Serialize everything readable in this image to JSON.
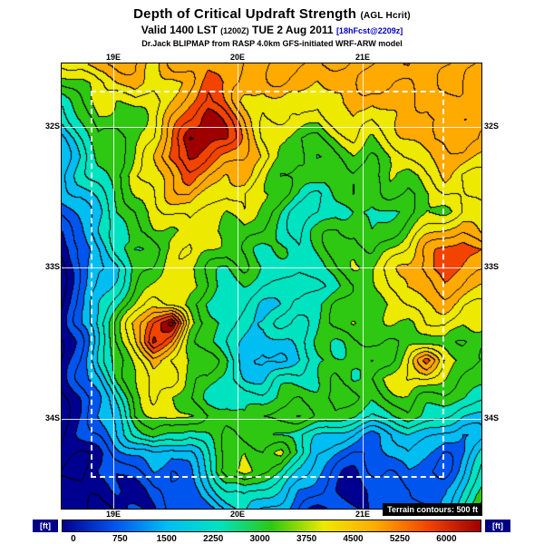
{
  "header": {
    "title": "Depth of Critical Updraft Strength",
    "title_suffix": "(AGL Hcrit)",
    "valid_prefix": "Valid 1400 LST",
    "valid_zulu": "(1200Z)",
    "valid_date": "TUE 2 Aug 2011",
    "forecast_tag": "[18hFcst@2209z]",
    "model_line": "Dr.Jack BLIPMAP from RASP 4.0km GFS-initiated WRF-ARW model"
  },
  "map": {
    "lat_labels": [
      "32S",
      "33S",
      "34S"
    ],
    "lon_labels": [
      "19E",
      "20E",
      "21E"
    ],
    "terrain_note": "Terrain contours: 500 ft",
    "grid_line_color": "#ffffff",
    "contour_color": "#000000",
    "band_colors": [
      "#000090",
      "#0055ee",
      "#00bdf2",
      "#00e3c0",
      "#2ec813",
      "#ede900",
      "#ffaa00",
      "#f24400",
      "#9e0000"
    ],
    "band_edges_ft": [
      0,
      750,
      1500,
      2250,
      3000,
      3750,
      4500,
      5250,
      6000,
      6750
    ],
    "field": [
      [
        5.5,
        5.5,
        6.5,
        6.5,
        6.5,
        6.0,
        6.5,
        6.5,
        7.0,
        6.5,
        6.5,
        6.5,
        6.5,
        6.5,
        6.5,
        6.5,
        6.5,
        6.5,
        6.5,
        7.0,
        6.5,
        6.5,
        6.5,
        6.5
      ],
      [
        4.5,
        5.0,
        5.5,
        6.0,
        6.5,
        5.5,
        5.5,
        6.5,
        7.5,
        7.0,
        6.5,
        6.0,
        6.5,
        6.5,
        6.0,
        6.5,
        6.5,
        6.5,
        6.5,
        6.5,
        7.0,
        6.5,
        6.5,
        6.5
      ],
      [
        3.5,
        4.5,
        5.5,
        5.0,
        5.5,
        5.0,
        6.0,
        7.0,
        7.5,
        7.0,
        6.0,
        5.5,
        6.0,
        6.0,
        5.5,
        6.0,
        6.5,
        6.0,
        6.5,
        6.5,
        6.5,
        7.0,
        6.5,
        6.5
      ],
      [
        3.0,
        4.0,
        5.0,
        4.5,
        4.5,
        5.5,
        6.5,
        7.5,
        8.5,
        7.5,
        6.5,
        5.5,
        5.5,
        5.5,
        5.0,
        5.5,
        6.0,
        5.5,
        6.0,
        6.5,
        6.0,
        6.5,
        6.5,
        6.5
      ],
      [
        2.5,
        3.5,
        4.5,
        4.0,
        4.5,
        5.5,
        7.0,
        8.5,
        8.5,
        8.0,
        6.5,
        5.5,
        5.0,
        4.5,
        4.5,
        5.0,
        5.5,
        5.0,
        5.5,
        6.0,
        6.5,
        6.5,
        7.0,
        6.5
      ],
      [
        2.5,
        3.0,
        4.0,
        4.5,
        5.0,
        6.0,
        7.5,
        8.0,
        7.5,
        7.0,
        6.5,
        6.0,
        5.0,
        4.5,
        4.0,
        4.5,
        5.0,
        4.5,
        5.0,
        5.5,
        6.0,
        6.5,
        6.5,
        6.0
      ],
      [
        2.5,
        3.0,
        3.5,
        4.5,
        5.5,
        6.0,
        6.5,
        7.0,
        6.5,
        6.0,
        6.5,
        5.5,
        4.5,
        4.0,
        4.5,
        4.0,
        4.5,
        4.5,
        5.0,
        4.5,
        5.5,
        6.0,
        5.5,
        5.5
      ],
      [
        2.0,
        2.5,
        3.5,
        4.0,
        5.0,
        5.5,
        6.0,
        6.5,
        6.0,
        5.5,
        5.5,
        5.0,
        4.5,
        4.0,
        3.5,
        4.0,
        4.5,
        4.0,
        4.5,
        4.5,
        5.0,
        5.5,
        5.5,
        5.0
      ],
      [
        1.5,
        2.5,
        3.0,
        4.0,
        4.5,
        5.0,
        5.5,
        6.0,
        5.5,
        5.0,
        5.5,
        4.5,
        4.0,
        3.5,
        3.5,
        4.0,
        4.0,
        3.5,
        4.0,
        4.5,
        5.0,
        5.0,
        5.5,
        5.5
      ],
      [
        1.0,
        2.0,
        3.0,
        3.5,
        4.5,
        5.0,
        5.0,
        5.5,
        5.0,
        4.5,
        5.0,
        4.5,
        4.0,
        3.5,
        4.0,
        4.5,
        4.5,
        4.0,
        4.5,
        5.0,
        5.5,
        6.0,
        6.5,
        6.0
      ],
      [
        0.5,
        1.5,
        2.5,
        3.5,
        4.0,
        4.5,
        5.0,
        5.5,
        5.0,
        4.5,
        4.5,
        4.0,
        4.0,
        3.5,
        4.0,
        4.5,
        5.0,
        4.5,
        5.0,
        5.5,
        6.5,
        7.0,
        7.5,
        7.0
      ],
      [
        0.5,
        1.5,
        2.5,
        3.0,
        4.0,
        4.5,
        5.5,
        5.0,
        4.5,
        4.0,
        4.5,
        4.0,
        3.5,
        3.5,
        4.0,
        4.5,
        5.0,
        5.0,
        5.5,
        6.0,
        7.0,
        7.5,
        7.0,
        6.5
      ],
      [
        0.5,
        1.5,
        2.5,
        3.5,
        4.5,
        5.0,
        5.5,
        5.0,
        4.5,
        4.0,
        4.0,
        3.5,
        3.5,
        3.0,
        3.5,
        4.0,
        4.5,
        5.0,
        5.5,
        6.0,
        6.5,
        7.0,
        6.5,
        6.0
      ],
      [
        0.5,
        1.5,
        3.0,
        4.0,
        5.0,
        6.0,
        5.5,
        4.5,
        4.0,
        3.5,
        3.5,
        3.0,
        3.0,
        3.5,
        4.0,
        4.5,
        4.5,
        5.0,
        5.0,
        5.5,
        6.0,
        6.0,
        5.5,
        5.5
      ],
      [
        0.5,
        2.0,
        3.5,
        4.5,
        6.0,
        7.5,
        8.5,
        5.5,
        4.5,
        3.5,
        3.0,
        3.0,
        3.5,
        3.5,
        4.0,
        4.5,
        5.0,
        4.5,
        5.0,
        5.0,
        5.5,
        5.5,
        5.0,
        5.0
      ],
      [
        0.5,
        1.5,
        3.0,
        4.5,
        6.0,
        8.0,
        7.0,
        5.0,
        4.0,
        3.5,
        3.0,
        2.5,
        3.0,
        3.5,
        4.0,
        4.0,
        4.5,
        4.5,
        4.5,
        5.0,
        4.5,
        5.0,
        4.5,
        4.5
      ],
      [
        0.5,
        1.5,
        3.0,
        4.0,
        5.5,
        6.5,
        5.5,
        5.0,
        4.5,
        4.0,
        3.0,
        2.5,
        2.5,
        3.0,
        3.5,
        4.0,
        4.5,
        4.0,
        4.5,
        5.5,
        7.0,
        5.5,
        5.0,
        4.5
      ],
      [
        0.5,
        1.5,
        2.5,
        4.0,
        5.0,
        6.0,
        5.5,
        4.5,
        4.5,
        3.5,
        3.0,
        3.0,
        3.5,
        3.5,
        4.0,
        4.5,
        4.0,
        4.5,
        5.0,
        5.5,
        5.5,
        5.0,
        4.5,
        4.0
      ],
      [
        0.5,
        1.0,
        2.0,
        3.5,
        4.5,
        5.5,
        5.0,
        4.5,
        4.0,
        4.0,
        3.5,
        3.5,
        4.0,
        4.5,
        4.5,
        5.0,
        4.5,
        4.0,
        4.5,
        5.0,
        4.5,
        4.5,
        4.0,
        3.5
      ],
      [
        0.5,
        1.0,
        2.0,
        3.0,
        4.5,
        5.0,
        5.5,
        5.0,
        4.5,
        4.5,
        4.0,
        4.5,
        5.0,
        5.0,
        4.5,
        4.5,
        4.0,
        3.5,
        4.0,
        4.5,
        4.0,
        3.5,
        3.0,
        3.0
      ],
      [
        0.5,
        1.0,
        1.5,
        2.5,
        3.5,
        4.5,
        4.0,
        3.5,
        4.0,
        4.5,
        4.0,
        4.5,
        4.0,
        3.5,
        3.0,
        2.5,
        2.5,
        2.0,
        2.5,
        3.0,
        2.5,
        2.0,
        2.0,
        2.5
      ],
      [
        0.5,
        0.5,
        1.0,
        1.5,
        2.0,
        2.5,
        2.0,
        2.5,
        3.5,
        4.5,
        5.0,
        4.5,
        5.0,
        4.0,
        2.5,
        2.0,
        1.5,
        1.5,
        2.0,
        2.5,
        2.0,
        1.5,
        2.0,
        3.0
      ],
      [
        0.5,
        0.5,
        1.0,
        1.0,
        1.5,
        2.0,
        1.5,
        2.0,
        3.0,
        5.0,
        5.5,
        4.5,
        4.0,
        3.0,
        2.0,
        1.5,
        1.0,
        1.5,
        1.5,
        2.0,
        1.5,
        1.5,
        2.5,
        3.5
      ],
      [
        0.5,
        0.5,
        0.5,
        1.0,
        1.0,
        1.5,
        1.5,
        1.5,
        2.5,
        3.5,
        4.0,
        3.5,
        3.0,
        2.0,
        1.5,
        1.0,
        1.0,
        1.0,
        1.5,
        1.5,
        1.5,
        2.0,
        3.0,
        4.0
      ],
      [
        0.5,
        0.5,
        0.5,
        0.5,
        1.0,
        1.0,
        1.5,
        1.5,
        2.0,
        2.5,
        3.0,
        2.5,
        2.0,
        1.5,
        1.0,
        1.0,
        1.0,
        1.0,
        1.0,
        1.5,
        1.5,
        2.0,
        3.5,
        4.5
      ]
    ]
  },
  "colorbar": {
    "unit_label": "[ft]",
    "unit_box_color": "#000085",
    "tick_labels": [
      "0",
      "750",
      "1500",
      "2250",
      "3000",
      "3750",
      "4500",
      "5250",
      "6000"
    ]
  }
}
